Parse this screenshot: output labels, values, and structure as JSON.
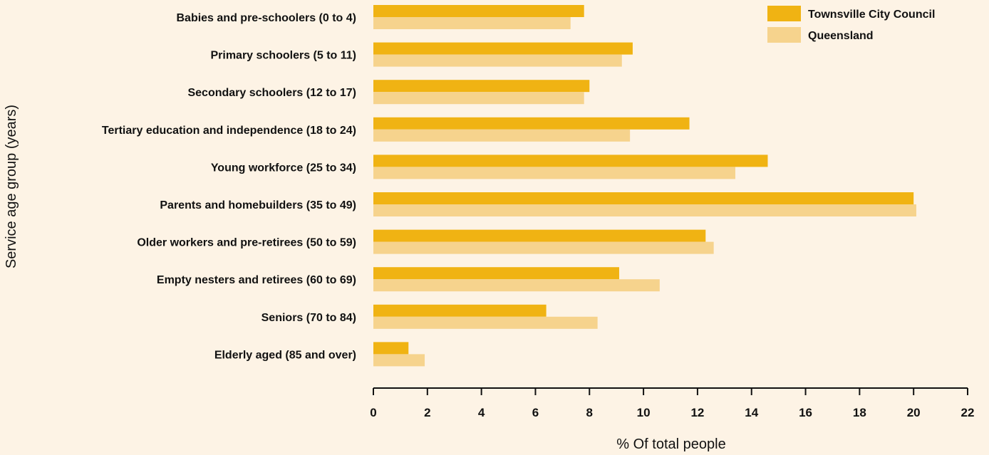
{
  "chart_data": {
    "type": "bar",
    "orientation": "horizontal",
    "categories": [
      "Babies and pre-schoolers (0 to 4)",
      "Primary schoolers (5 to 11)",
      "Secondary schoolers (12 to 17)",
      "Tertiary education and independence (18 to 24)",
      "Young workforce (25 to 34)",
      "Parents and homebuilders (35 to 49)",
      "Older workers and pre-retirees (50 to 59)",
      "Empty nesters and retirees (60 to 69)",
      "Seniors (70 to 84)",
      "Elderly aged (85 and over)"
    ],
    "series": [
      {
        "name": "Townsville City Council",
        "color": "#f0b313",
        "values": [
          7.8,
          9.6,
          8.0,
          11.7,
          14.6,
          20.0,
          12.3,
          9.1,
          6.4,
          1.3
        ]
      },
      {
        "name": "Queensland",
        "color": "#f6d38d",
        "values": [
          7.3,
          9.2,
          7.8,
          9.5,
          13.4,
          20.1,
          12.6,
          10.6,
          8.3,
          1.9
        ]
      }
    ],
    "xlabel": "% Of total people",
    "ylabel": "Service age group (years)",
    "xlim": [
      0,
      22
    ],
    "xticks": [
      0,
      2,
      4,
      6,
      8,
      10,
      12,
      14,
      16,
      18,
      20,
      22
    ],
    "grid": false,
    "legend_position": "top-right"
  }
}
